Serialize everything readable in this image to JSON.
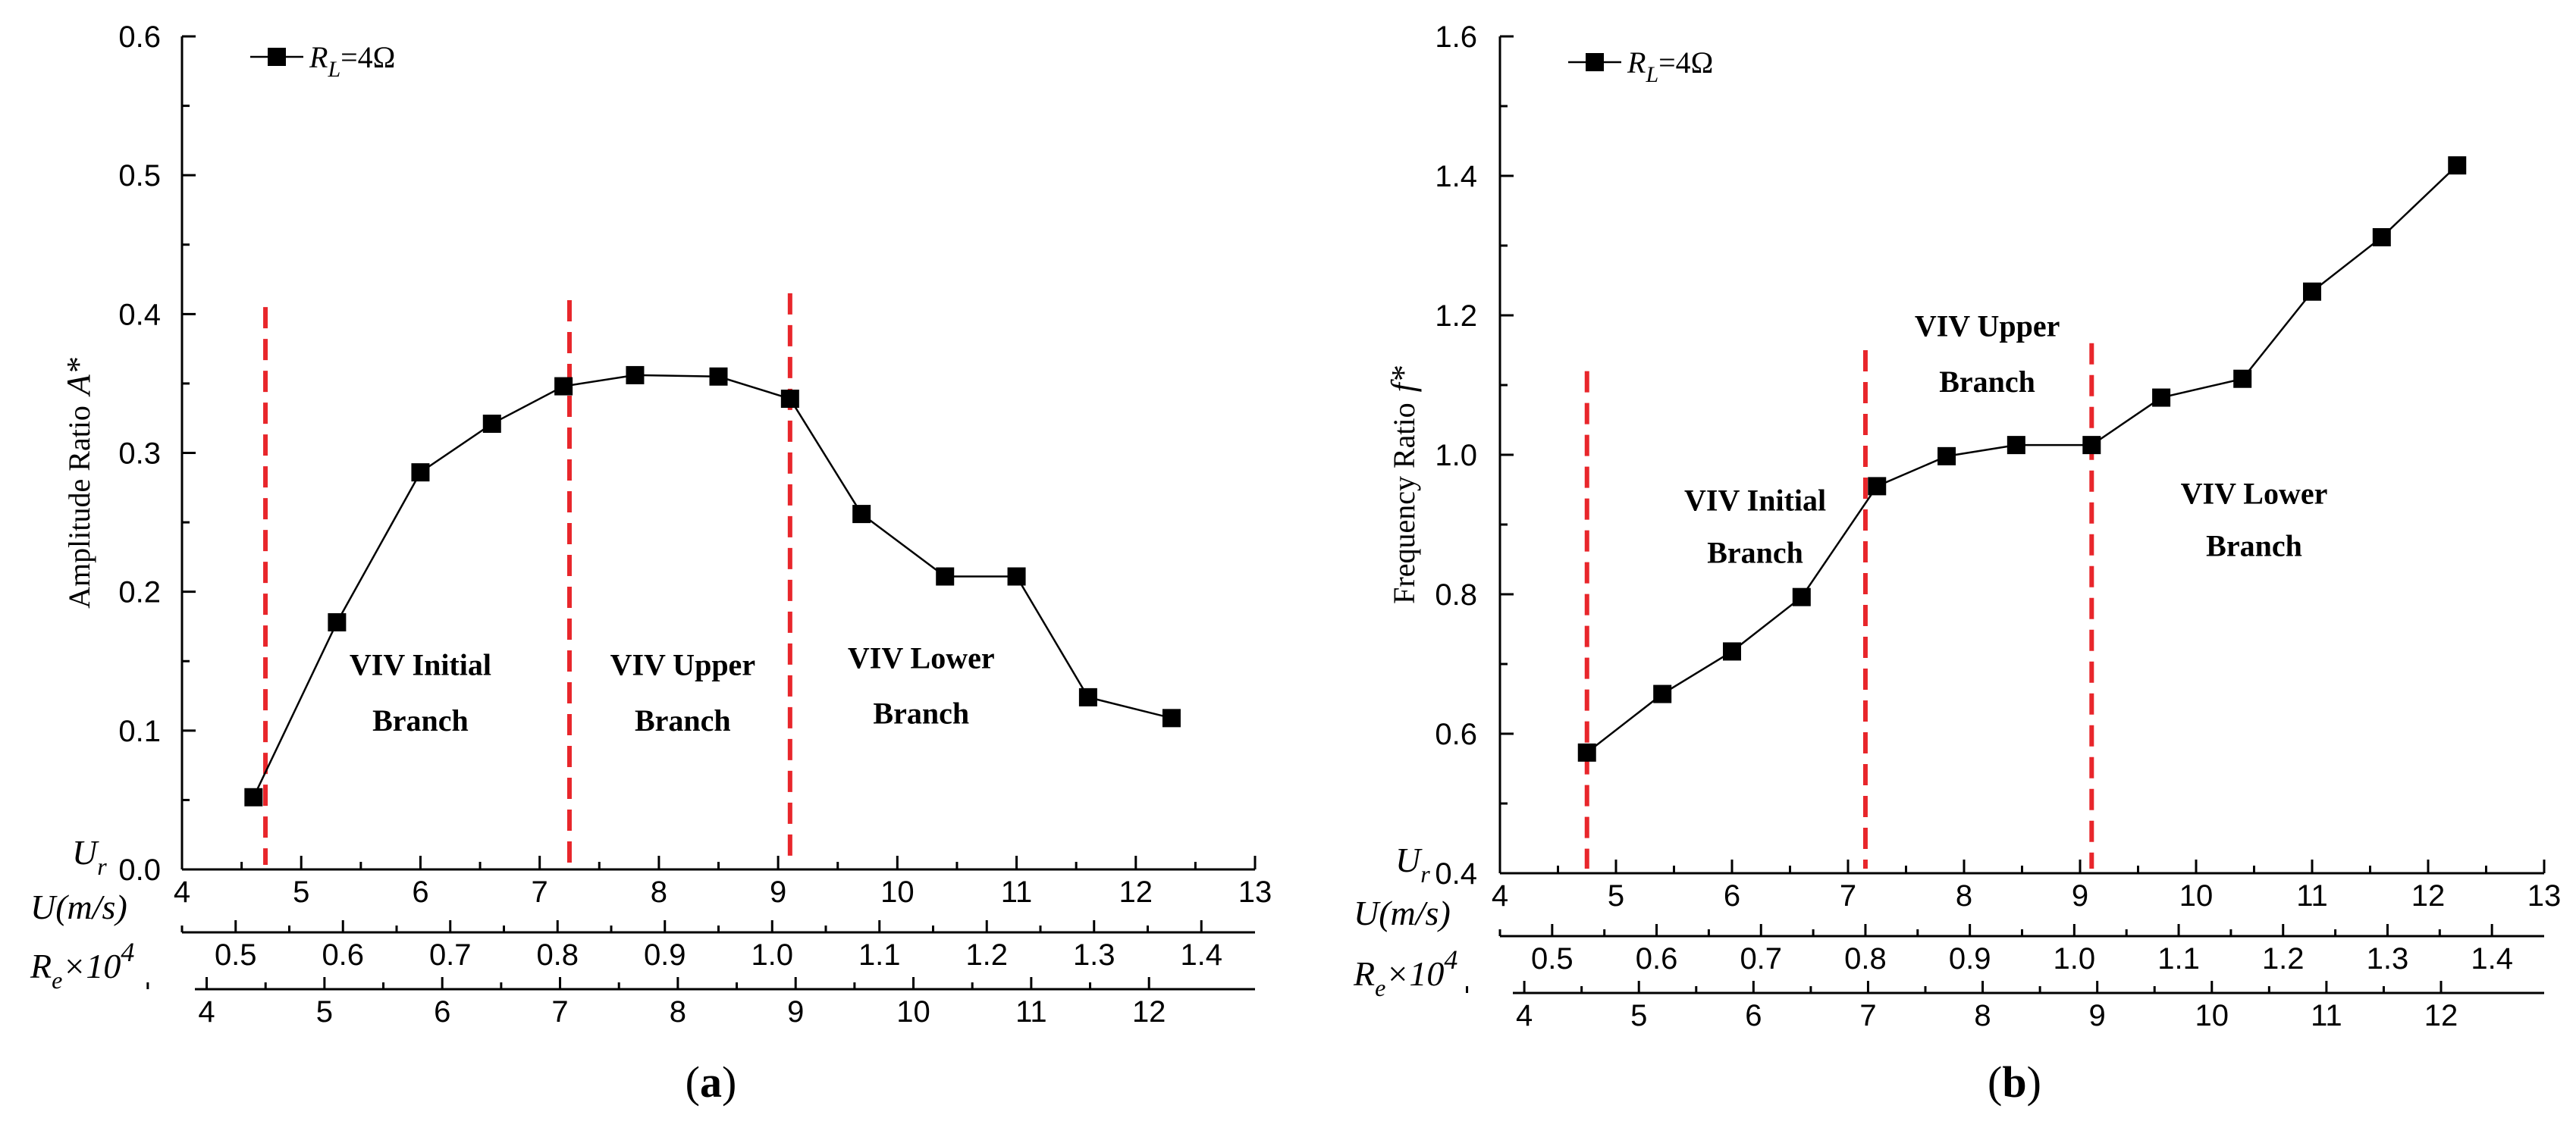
{
  "chart_data": [
    {
      "type": "line",
      "panel_label": "(a)",
      "panel_letter": "a",
      "ylabel": "Amplitude Ratio",
      "ylabel_symbol": "A*",
      "ylim": [
        0,
        0.6
      ],
      "yticks": [
        "0.0",
        "0.1",
        "0.2",
        "0.3",
        "0.4",
        "0.5",
        "0.6"
      ],
      "legend": {
        "symbol": "R",
        "subscript": "L",
        "value": "=4Ω",
        "placement": "top-left"
      },
      "series": [
        {
          "name": "RL=4Ω",
          "color": "#000000",
          "x": [
            4.6,
            5.3,
            6.0,
            6.6,
            7.2,
            7.8,
            8.5,
            9.1,
            9.7,
            10.4,
            11.0,
            11.6,
            12.3
          ],
          "values": [
            0.052,
            0.178,
            0.286,
            0.321,
            0.348,
            0.356,
            0.355,
            0.339,
            0.256,
            0.211,
            0.211,
            0.124,
            0.109
          ]
        }
      ],
      "dashed_lines": [
        {
          "x": 4.7,
          "top": 0.405
        },
        {
          "x": 7.25,
          "top": 0.41
        },
        {
          "x": 9.1,
          "top": 0.415
        }
      ],
      "dashed_color": "#e8262b",
      "regions": [
        {
          "line1": "VIV Initial",
          "line2": "Branch",
          "x": 6.0,
          "y1": 0.14,
          "y2": 0.1
        },
        {
          "line1": "VIV Upper",
          "line2": "Branch",
          "x": 8.2,
          "y1": 0.14,
          "y2": 0.1
        },
        {
          "line1": "VIV Lower",
          "line2": "Branch",
          "x": 10.2,
          "y1": 0.145,
          "y2": 0.105
        }
      ],
      "axes": {
        "ur": {
          "label": "U",
          "subscript": "r",
          "range": [
            4,
            13
          ],
          "ticks": [
            "4",
            "5",
            "6",
            "7",
            "8",
            "9",
            "10",
            "11",
            "12",
            "13"
          ],
          "values": [
            4,
            5,
            6,
            7,
            8,
            9,
            10,
            11,
            12,
            13
          ]
        },
        "u": {
          "label": "U(m/s)",
          "range": [
            0.45,
            1.45
          ],
          "ticks": [
            "0.5",
            "0.6",
            "0.7",
            "0.8",
            "0.9",
            "1.0",
            "1.1",
            "1.2",
            "1.3",
            "1.4"
          ],
          "values": [
            0.5,
            0.6,
            0.7,
            0.8,
            0.9,
            1.0,
            1.1,
            1.2,
            1.3,
            1.4
          ]
        },
        "re": {
          "label": "R",
          "subscript": "e",
          "suffix": "×10",
          "power": "4",
          "range": [
            3.9,
            12.9
          ],
          "ticks": [
            "4",
            "5",
            "6",
            "7",
            "8",
            "9",
            "10",
            "11",
            "12"
          ],
          "values": [
            4,
            5,
            6,
            7,
            8,
            9,
            10,
            11,
            12
          ]
        }
      }
    },
    {
      "type": "line",
      "panel_label": "(b)",
      "panel_letter": "b",
      "ylabel": "Frequency Ratio",
      "ylabel_symbol": "f*",
      "ylim": [
        0.4,
        1.6
      ],
      "yticks": [
        "0.4",
        "0.6",
        "0.8",
        "1.0",
        "1.2",
        "1.4",
        "1.6"
      ],
      "legend": {
        "symbol": "R",
        "subscript": "L",
        "value": "=4Ω",
        "placement": "top-left"
      },
      "series": [
        {
          "name": "RL=4Ω",
          "color": "#000000",
          "x": [
            4.75,
            5.4,
            6.0,
            6.6,
            7.25,
            7.85,
            8.45,
            9.1,
            9.7,
            10.4,
            11.0,
            11.6,
            12.25
          ],
          "values": [
            0.573,
            0.657,
            0.718,
            0.796,
            0.955,
            0.998,
            1.014,
            1.014,
            1.082,
            1.109,
            1.234,
            1.312,
            1.415
          ]
        }
      ],
      "dashed_lines": [
        {
          "x": 4.75,
          "top": 1.12
        },
        {
          "x": 7.15,
          "top": 1.15
        },
        {
          "x": 9.1,
          "top": 1.16
        }
      ],
      "dashed_color": "#e8262b",
      "regions": [
        {
          "line1": "VIV Initial",
          "line2": "Branch",
          "x": 6.2,
          "y1": 0.92,
          "y2": 0.845
        },
        {
          "line1": "VIV Upper",
          "line2": "Branch",
          "x": 8.2,
          "y1": 1.17,
          "y2": 1.09
        },
        {
          "line1": "VIV Lower",
          "line2": "Branch",
          "x": 10.5,
          "y1": 0.93,
          "y2": 0.855
        }
      ],
      "axes": {
        "ur": {
          "label": "U",
          "subscript": "r",
          "range": [
            4,
            13
          ],
          "ticks": [
            "4",
            "5",
            "6",
            "7",
            "8",
            "9",
            "10",
            "11",
            "12",
            "13"
          ],
          "values": [
            4,
            5,
            6,
            7,
            8,
            9,
            10,
            11,
            12,
            13
          ]
        },
        "u": {
          "label": "U(m/s)",
          "range": [
            0.45,
            1.45
          ],
          "ticks": [
            "0.5",
            "0.6",
            "0.7",
            "0.8",
            "0.9",
            "1.0",
            "1.1",
            "1.2",
            "1.3",
            "1.4"
          ],
          "values": [
            0.5,
            0.6,
            0.7,
            0.8,
            0.9,
            1.0,
            1.1,
            1.2,
            1.3,
            1.4
          ]
        },
        "re": {
          "label": "R",
          "subscript": "e",
          "suffix": "×10",
          "power": "4",
          "range": [
            3.9,
            12.9
          ],
          "ticks": [
            "4",
            "5",
            "6",
            "7",
            "8",
            "9",
            "10",
            "11",
            "12"
          ],
          "values": [
            4,
            5,
            6,
            7,
            8,
            9,
            10,
            11,
            12
          ]
        }
      }
    }
  ]
}
